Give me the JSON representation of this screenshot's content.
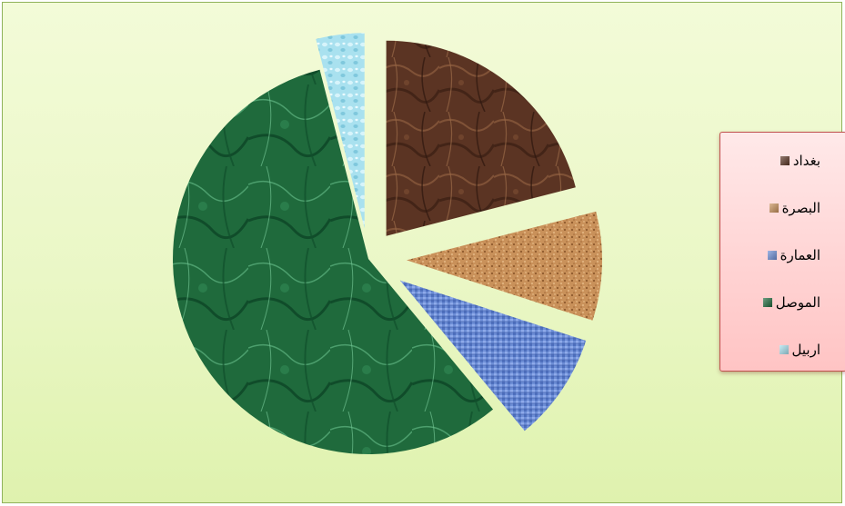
{
  "chart_data": {
    "type": "pie",
    "title": "",
    "exploded": true,
    "legend_position": "right",
    "slices": [
      {
        "label": "بغداد",
        "value": 21,
        "color": "#5b3423"
      },
      {
        "label": "البصرة",
        "value": 9,
        "color": "#c9915a"
      },
      {
        "label": "العمارة",
        "value": 9,
        "color": "#6d8ed6"
      },
      {
        "label": "الموصل",
        "value": 57,
        "color": "#1f6a3c"
      },
      {
        "label": "اربيل",
        "value": 4,
        "color": "#a9e1ef"
      }
    ]
  }
}
